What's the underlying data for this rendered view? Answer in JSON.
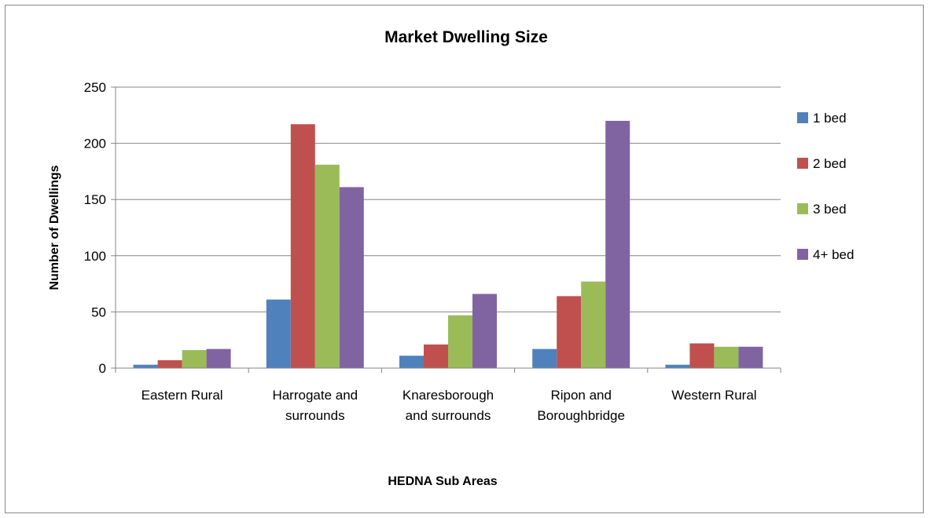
{
  "chart_data": {
    "type": "bar",
    "title": "Market Dwelling Size",
    "xlabel": "HEDNA Sub Areas",
    "ylabel": "Number of Dwellings",
    "ylim": [
      0,
      250
    ],
    "yticks": [
      0,
      50,
      100,
      150,
      200,
      250
    ],
    "grid": true,
    "legend_position": "right",
    "categories": [
      [
        "Eastern Rural"
      ],
      [
        "Harrogate and",
        "surrounds"
      ],
      [
        "Knaresborough",
        "and surrounds"
      ],
      [
        "Ripon and",
        "Boroughbridge"
      ],
      [
        "Western Rural"
      ]
    ],
    "series": [
      {
        "name": "1 bed",
        "color": "#4F81BD",
        "values": [
          3,
          61,
          11,
          17,
          3
        ]
      },
      {
        "name": "2 bed",
        "color": "#C0504D",
        "values": [
          7,
          217,
          21,
          64,
          22
        ]
      },
      {
        "name": "3 bed",
        "color": "#9BBB59",
        "values": [
          16,
          181,
          47,
          77,
          19
        ]
      },
      {
        "name": "4+ bed",
        "color": "#8064A2",
        "values": [
          17,
          161,
          66,
          220,
          19
        ]
      }
    ]
  }
}
